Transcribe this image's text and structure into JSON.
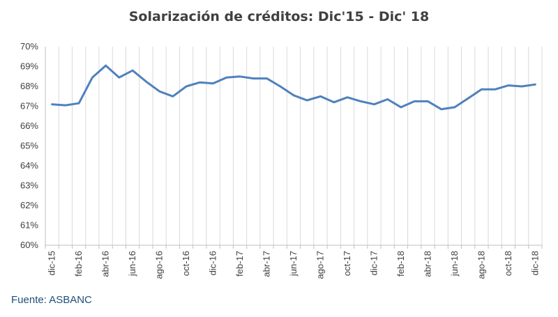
{
  "chart_data": {
    "type": "line",
    "title": "Solarización de créditos: Dic'15 - Dic' 18",
    "xlabel": "",
    "ylabel": "",
    "ylim": [
      60,
      70
    ],
    "yticks": [
      "60%",
      "61%",
      "62%",
      "63%",
      "64%",
      "65%",
      "66%",
      "67%",
      "68%",
      "69%",
      "70%"
    ],
    "x_labels_shown": [
      "dic-15",
      "feb-16",
      "abr-16",
      "jun-16",
      "ago-16",
      "oct-16",
      "dic-16",
      "feb-17",
      "abr-17",
      "jun-17",
      "ago-17",
      "oct-17",
      "dic-17",
      "feb-18",
      "abr-18",
      "jun-18",
      "ago-18",
      "oct-18",
      "dic-18"
    ],
    "categories": [
      "dic-15",
      "ene-16",
      "feb-16",
      "mar-16",
      "abr-16",
      "may-16",
      "jun-16",
      "jul-16",
      "ago-16",
      "sep-16",
      "oct-16",
      "nov-16",
      "dic-16",
      "ene-17",
      "feb-17",
      "mar-17",
      "abr-17",
      "may-17",
      "jun-17",
      "jul-17",
      "ago-17",
      "sep-17",
      "oct-17",
      "nov-17",
      "dic-17",
      "ene-18",
      "feb-18",
      "mar-18",
      "abr-18",
      "may-18",
      "jun-18",
      "jul-18",
      "ago-18",
      "sep-18",
      "oct-18",
      "nov-18",
      "dic-18"
    ],
    "values": [
      67.1,
      67.05,
      67.15,
      68.45,
      69.05,
      68.45,
      68.8,
      68.25,
      67.75,
      67.5,
      68.0,
      68.2,
      68.15,
      68.45,
      68.5,
      68.4,
      68.4,
      68.0,
      67.55,
      67.3,
      67.5,
      67.2,
      67.45,
      67.25,
      67.1,
      67.35,
      66.95,
      67.25,
      67.25,
      66.85,
      66.95,
      67.4,
      67.85,
      67.85,
      68.05,
      68.0,
      68.1
    ],
    "line_color": "#4f81bd",
    "grid": "vertical"
  },
  "source": "Fuente: ASBANC"
}
